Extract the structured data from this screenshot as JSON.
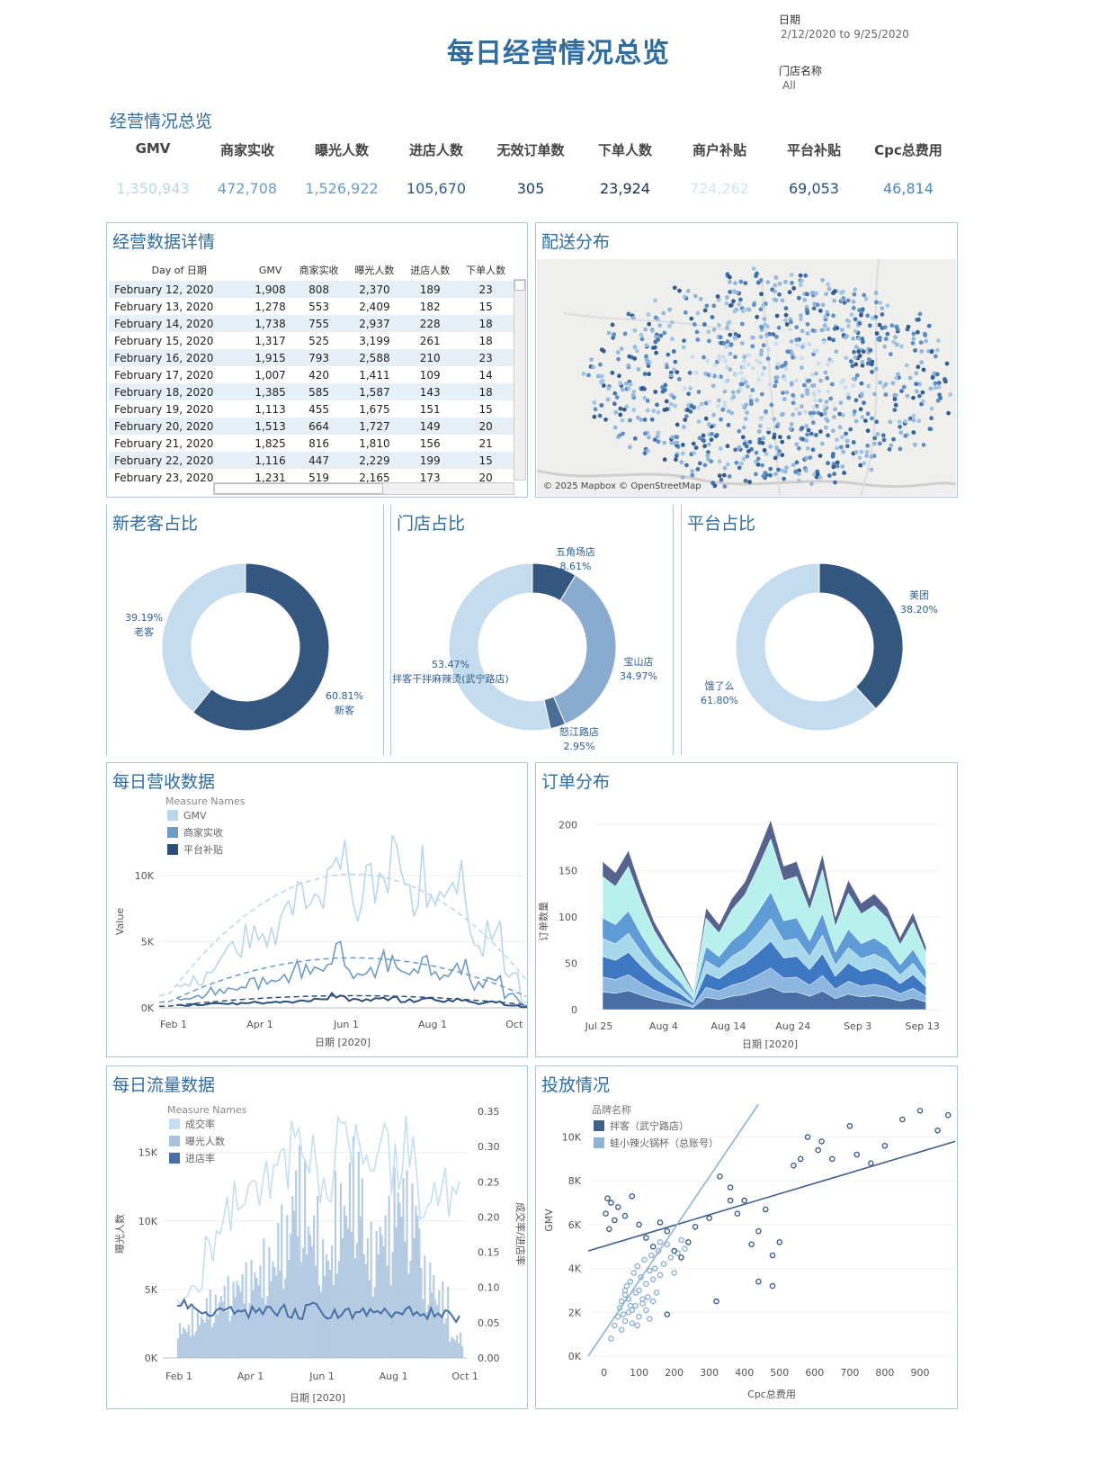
{
  "title": "每日经营情况总览",
  "filters": {
    "date_label": "日期",
    "date_value": "2/12/2020 to 9/25/2020",
    "store_label": "门店名称",
    "store_value": "All"
  },
  "overview": {
    "title": "经营情况总览",
    "kpis": [
      {
        "label": "GMV",
        "value": "1,350,943",
        "color": "#b9d6ea"
      },
      {
        "label": "商家实收",
        "value": "472,708",
        "color": "#6e9bc5"
      },
      {
        "label": "曝光人数",
        "value": "1,526,922",
        "color": "#6e9bc5"
      },
      {
        "label": "进店人数",
        "value": "105,670",
        "color": "#2f5e8c"
      },
      {
        "label": "无效订单数",
        "value": "305",
        "color": "#1d3f66"
      },
      {
        "label": "下单人数",
        "value": "23,924",
        "color": "#1d2f4f"
      },
      {
        "label": "商户补贴",
        "value": "724,262",
        "color": "#cfe6f3"
      },
      {
        "label": "平台补贴",
        "value": "69,053",
        "color": "#2a4f78"
      },
      {
        "label": "Cpc总费用",
        "value": "46,814",
        "color": "#4a86c0"
      }
    ]
  },
  "detail_table": {
    "title": "经营数据详情",
    "columns": [
      "Day of 日期",
      "GMV",
      "商家实收",
      "曝光人数",
      "进店人数",
      "下单人数"
    ],
    "rows": [
      [
        "February 12, 2020",
        "1,908",
        "808",
        "2,370",
        "189",
        "23"
      ],
      [
        "February 13, 2020",
        "1,278",
        "553",
        "2,409",
        "182",
        "15"
      ],
      [
        "February 14, 2020",
        "1,738",
        "755",
        "2,937",
        "228",
        "18"
      ],
      [
        "February 15, 2020",
        "1,317",
        "525",
        "3,199",
        "261",
        "18"
      ],
      [
        "February 16, 2020",
        "1,915",
        "793",
        "2,588",
        "210",
        "23"
      ],
      [
        "February 17, 2020",
        "1,007",
        "420",
        "1,411",
        "109",
        "14"
      ],
      [
        "February 18, 2020",
        "1,385",
        "585",
        "1,587",
        "143",
        "18"
      ],
      [
        "February 19, 2020",
        "1,113",
        "455",
        "1,675",
        "151",
        "15"
      ],
      [
        "February 20, 2020",
        "1,513",
        "664",
        "1,727",
        "149",
        "20"
      ],
      [
        "February 21, 2020",
        "1,825",
        "816",
        "1,810",
        "156",
        "21"
      ],
      [
        "February 22, 2020",
        "1,116",
        "447",
        "2,229",
        "199",
        "15"
      ],
      [
        "February 23, 2020",
        "1,231",
        "519",
        "2,165",
        "173",
        "20"
      ]
    ]
  },
  "map": {
    "title": "配送分布",
    "attribution": "© 2025 Mapbox © OpenStreetMap"
  },
  "panels": {
    "customer": "新老客占比",
    "store": "门店占比",
    "platform": "平台占比",
    "revenue": "每日营收数据",
    "orders": "订单分布",
    "traffic": "每日流量数据",
    "ads": "投放情况"
  },
  "chart_data": [
    {
      "id": "customer_pie",
      "type": "pie",
      "title": "新老客占比",
      "slices": [
        {
          "label": "新客",
          "pct": "60.81%",
          "value": 60.81,
          "color": "#34577f"
        },
        {
          "label": "老客",
          "pct": "39.19%",
          "value": 39.19,
          "color": "#c4dcee"
        }
      ]
    },
    {
      "id": "store_pie",
      "type": "pie",
      "title": "门店占比",
      "slices": [
        {
          "label": "五角场店",
          "pct": "8.61%",
          "value": 8.61,
          "color": "#34577f"
        },
        {
          "label": "宝山店",
          "pct": "34.97%",
          "value": 34.97,
          "color": "#8aabd0"
        },
        {
          "label": "怒江路店",
          "pct": "2.95%",
          "value": 2.95,
          "color": "#4b6d96"
        },
        {
          "label": "拌客干拌麻辣烫(武宁路店)",
          "pct": "53.47%",
          "value": 53.47,
          "color": "#c4dcee"
        }
      ]
    },
    {
      "id": "platform_pie",
      "type": "pie",
      "title": "平台占比",
      "slices": [
        {
          "label": "美团",
          "pct": "38.20%",
          "value": 38.2,
          "color": "#34577f"
        },
        {
          "label": "饿了么",
          "pct": "61.80%",
          "value": 61.8,
          "color": "#c4dcee"
        }
      ]
    },
    {
      "id": "revenue_line",
      "type": "line",
      "title": "每日营收数据",
      "legend_title": "Measure Names",
      "ylabel": "Value",
      "xlabel": "日期 [2020]",
      "x_ticks": [
        "Feb 1",
        "Apr 1",
        "Jun 1",
        "Aug 1",
        "Oct 1"
      ],
      "y_ticks": [
        "0K",
        "5K",
        "10K"
      ],
      "ylim": [
        0,
        14000
      ],
      "x_months": [
        0,
        8.5
      ],
      "series": [
        {
          "name": "GMV",
          "color": "#b9d6ea",
          "x": [
            0.4,
            0.8,
            1.2,
            1.6,
            2.0,
            2.4,
            2.8,
            3.2,
            3.6,
            4.0,
            4.4,
            4.8,
            5.2,
            5.6,
            6.0,
            6.4,
            6.8,
            7.2,
            7.6,
            8.0,
            8.4
          ],
          "values": [
            1500,
            2200,
            3500,
            4200,
            5400,
            6000,
            7500,
            9000,
            9400,
            11000,
            8000,
            9000,
            11500,
            8500,
            10000,
            7500,
            9500,
            5000,
            6500,
            2500,
            500
          ]
        },
        {
          "name": "商家实收",
          "color": "#6e9bc5",
          "x": [
            0.4,
            0.8,
            1.2,
            1.6,
            2.0,
            2.4,
            2.8,
            3.2,
            3.6,
            4.0,
            4.4,
            4.8,
            5.2,
            5.6,
            6.0,
            6.4,
            6.8,
            7.2,
            7.6,
            8.0,
            8.4
          ],
          "values": [
            700,
            900,
            1300,
            1500,
            1900,
            2100,
            2400,
            3000,
            3100,
            4200,
            2600,
            2900,
            3600,
            2800,
            3300,
            2500,
            3200,
            1800,
            2300,
            900,
            200
          ]
        },
        {
          "name": "平台补贴",
          "color": "#2c4f7c",
          "x": [
            0.4,
            0.8,
            1.2,
            1.6,
            2.0,
            2.4,
            2.8,
            3.2,
            3.6,
            4.0,
            4.4,
            4.8,
            5.2,
            5.6,
            6.0,
            6.4,
            6.8,
            7.2,
            7.6,
            8.0,
            8.4
          ],
          "values": [
            200,
            250,
            300,
            320,
            380,
            420,
            450,
            600,
            650,
            1000,
            550,
            600,
            750,
            550,
            650,
            500,
            600,
            380,
            450,
            200,
            60
          ]
        }
      ]
    },
    {
      "id": "orders_area",
      "type": "area",
      "title": "订单分布",
      "ylabel": "订单数量",
      "xlabel": "日期 [2020]",
      "x_ticks": [
        "Jul 25",
        "Aug 4",
        "Aug 14",
        "Aug 24",
        "Sep 3",
        "Sep 13"
      ],
      "y_ticks": [
        "0",
        "50",
        "100",
        "150",
        "200"
      ],
      "ylim": [
        0,
        210
      ],
      "x_days": [
        0,
        52
      ],
      "x": [
        0,
        2,
        4,
        6,
        8,
        10,
        12,
        14,
        16,
        18,
        20,
        22,
        24,
        26,
        28,
        30,
        32,
        34,
        36,
        38,
        40,
        42,
        44,
        46,
        48,
        50
      ],
      "totals": [
        160,
        148,
        172,
        130,
        95,
        70,
        48,
        20,
        110,
        92,
        120,
        138,
        170,
        205,
        155,
        160,
        120,
        168,
        100,
        140,
        115,
        125,
        110,
        78,
        105,
        68
      ],
      "layer_fractions": [
        0.12,
        0.1,
        0.14,
        0.12,
        0.14,
        0.28,
        0.1
      ],
      "layer_colors": [
        "#4a6fa5",
        "#8db6e0",
        "#3f78c2",
        "#a8d8ec",
        "#5f9bd6",
        "#b8f0ee",
        "#57638f"
      ]
    },
    {
      "id": "traffic_combo",
      "type": "bar",
      "title": "每日流量数据",
      "legend_title": "Measure Names",
      "ylabel": "曝光人数",
      "y2label": "成交率/进店率",
      "xlabel": "日期 [2020]",
      "x_ticks": [
        "Feb 1",
        "Apr 1",
        "Jun 1",
        "Aug 1",
        "Oct 1"
      ],
      "y_ticks": [
        "0K",
        "5K",
        "10K",
        "15K"
      ],
      "y2_ticks": [
        "0.00",
        "0.05",
        "0.10",
        "0.15",
        "0.20",
        "0.25",
        "0.30",
        "0.35"
      ],
      "ylim": [
        0,
        18000
      ],
      "y2lim": [
        0,
        0.35
      ],
      "x_months": [
        0,
        8.5
      ],
      "series": [
        {
          "name": "成交率",
          "color": "#c6dff0",
          "x": [
            0.4,
            0.8,
            1.2,
            1.6,
            2.0,
            2.4,
            2.8,
            3.2,
            3.6,
            4.0,
            4.4,
            4.8,
            5.2,
            5.6,
            6.0,
            6.4,
            6.8,
            7.2,
            7.6,
            8.0
          ],
          "values": [
            0.08,
            0.1,
            0.16,
            0.2,
            0.24,
            0.25,
            0.26,
            0.27,
            0.3,
            0.28,
            0.24,
            0.3,
            0.32,
            0.26,
            0.31,
            0.27,
            0.3,
            0.22,
            0.25,
            0.23
          ]
        },
        {
          "name": "曝光人数",
          "color": "#a9c3de",
          "x": [
            0.4,
            0.8,
            1.2,
            1.6,
            2.0,
            2.4,
            2.8,
            3.2,
            3.6,
            4.0,
            4.4,
            4.8,
            5.2,
            5.6,
            6.0,
            6.4,
            6.8,
            7.2,
            7.6,
            8.0
          ],
          "values": [
            2200,
            3000,
            4000,
            4800,
            5600,
            6200,
            7000,
            9000,
            12500,
            9500,
            7500,
            11000,
            13000,
            8000,
            9500,
            12000,
            11000,
            6000,
            4500,
            1500
          ]
        },
        {
          "name": "进店率",
          "color": "#4a6fa5",
          "x": [
            0.4,
            0.8,
            1.2,
            1.6,
            2.0,
            2.4,
            2.8,
            3.2,
            3.6,
            4.0,
            4.4,
            4.8,
            5.2,
            5.6,
            6.0,
            6.4,
            6.8,
            7.2,
            7.6,
            8.0
          ],
          "values": [
            0.075,
            0.07,
            0.065,
            0.068,
            0.07,
            0.066,
            0.064,
            0.068,
            0.062,
            0.07,
            0.065,
            0.06,
            0.066,
            0.064,
            0.07,
            0.062,
            0.068,
            0.064,
            0.06,
            0.058
          ]
        }
      ]
    },
    {
      "id": "ads_scatter",
      "type": "scatter",
      "title": "投放情况",
      "legend_title": "品牌名称",
      "xlabel": "Cpc总费用",
      "ylabel": "GMV",
      "x_ticks": [
        "0",
        "100",
        "200",
        "300",
        "400",
        "500",
        "600",
        "700",
        "800",
        "900"
      ],
      "y_ticks": [
        "0K",
        "2K",
        "4K",
        "6K",
        "8K",
        "10K"
      ],
      "xlim": [
        -45,
        1000
      ],
      "ylim": [
        0,
        11500
      ],
      "series": [
        {
          "name": "拌客（武宁路店）",
          "color": "#3f5f8c",
          "trend": [
            [
              -45,
              4800
            ],
            [
              1000,
              9800
            ]
          ],
          "points": [
            [
              10,
              7200
            ],
            [
              20,
              7000
            ],
            [
              5,
              6500
            ],
            [
              30,
              6200
            ],
            [
              15,
              5800
            ],
            [
              40,
              6800
            ],
            [
              60,
              6400
            ],
            [
              80,
              7300
            ],
            [
              100,
              6000
            ],
            [
              120,
              5400
            ],
            [
              140,
              5000
            ],
            [
              160,
              6100
            ],
            [
              180,
              5700
            ],
            [
              200,
              4800
            ],
            [
              220,
              4500
            ],
            [
              240,
              5200
            ],
            [
              260,
              5900
            ],
            [
              300,
              6300
            ],
            [
              330,
              8200
            ],
            [
              360,
              7700
            ],
            [
              380,
              6500
            ],
            [
              400,
              7100
            ],
            [
              420,
              5100
            ],
            [
              440,
              5700
            ],
            [
              460,
              6700
            ],
            [
              480,
              4600
            ],
            [
              500,
              5200
            ],
            [
              560,
              9000
            ],
            [
              580,
              10000
            ],
            [
              620,
              9800
            ],
            [
              650,
              9000
            ],
            [
              700,
              10500
            ],
            [
              720,
              9200
            ],
            [
              760,
              8800
            ],
            [
              800,
              9600
            ],
            [
              850,
              10800
            ],
            [
              900,
              11200
            ],
            [
              950,
              10300
            ],
            [
              980,
              11000
            ],
            [
              320,
              2500
            ],
            [
              440,
              3400
            ],
            [
              480,
              3200
            ],
            [
              180,
              1900
            ],
            [
              360,
              7100
            ],
            [
              540,
              8700
            ],
            [
              610,
              9400
            ]
          ]
        },
        {
          "name": "蛙小辣火锅杯（总账号）",
          "color": "#8fb2d4",
          "trend": [
            [
              -45,
              0
            ],
            [
              440,
              11500
            ]
          ],
          "points": [
            [
              20,
              800
            ],
            [
              30,
              1400
            ],
            [
              40,
              1800
            ],
            [
              45,
              2200
            ],
            [
              50,
              2500
            ],
            [
              55,
              1900
            ],
            [
              60,
              2800
            ],
            [
              65,
              3200
            ],
            [
              70,
              2600
            ],
            [
              75,
              3400
            ],
            [
              80,
              2100
            ],
            [
              85,
              3800
            ],
            [
              90,
              2900
            ],
            [
              95,
              4100
            ],
            [
              100,
              3000
            ],
            [
              105,
              3600
            ],
            [
              110,
              2400
            ],
            [
              115,
              4400
            ],
            [
              120,
              3300
            ],
            [
              125,
              2700
            ],
            [
              130,
              3900
            ],
            [
              135,
              4600
            ],
            [
              140,
              3500
            ],
            [
              145,
              4000
            ],
            [
              150,
              2900
            ],
            [
              155,
              4800
            ],
            [
              160,
              3700
            ],
            [
              170,
              4200
            ],
            [
              180,
              5100
            ],
            [
              190,
              4500
            ],
            [
              200,
              3800
            ],
            [
              210,
              4700
            ],
            [
              220,
              5300
            ],
            [
              230,
              4900
            ],
            [
              50,
              1200
            ],
            [
              60,
              1600
            ],
            [
              70,
              2000
            ],
            [
              80,
              1500
            ],
            [
              90,
              2300
            ],
            [
              100,
              1800
            ],
            [
              110,
              2600
            ],
            [
              120,
              2100
            ],
            [
              130,
              1700
            ],
            [
              60,
              3000
            ],
            [
              75,
              2300
            ],
            [
              95,
              1400
            ],
            [
              140,
              2500
            ],
            [
              160,
              5200
            ]
          ]
        }
      ]
    }
  ]
}
